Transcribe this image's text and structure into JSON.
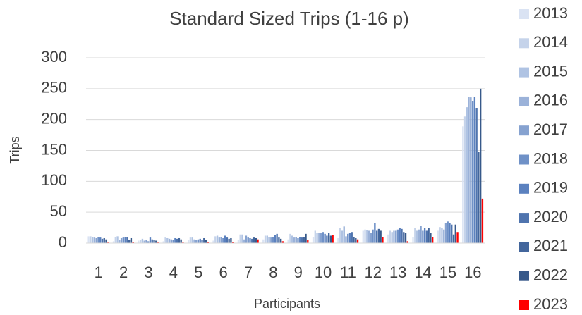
{
  "chart_data": {
    "type": "bar",
    "title": "Standard Sized Trips (1-16 p)",
    "x_label": "Participants",
    "y_label": "Trips",
    "categories": [
      "1",
      "2",
      "3",
      "4",
      "5",
      "6",
      "7",
      "8",
      "9",
      "10",
      "11",
      "12",
      "13",
      "14",
      "15",
      "16"
    ],
    "series": [
      {
        "name": "2013",
        "color": "#dae3f3",
        "values": [
          11,
          3,
          4,
          3,
          5,
          4,
          5,
          6,
          6,
          10,
          8,
          20,
          14,
          10,
          20,
          189
        ]
      },
      {
        "name": "2014",
        "color": "#c5d3ea",
        "values": [
          11,
          10,
          5,
          9,
          9,
          11,
          14,
          12,
          15,
          20,
          25,
          22,
          20,
          24,
          26,
          205
        ]
      },
      {
        "name": "2015",
        "color": "#afc3e3",
        "values": [
          10,
          11,
          7,
          8,
          9,
          12,
          14,
          12,
          12,
          17,
          20,
          21,
          18,
          20,
          24,
          220
        ]
      },
      {
        "name": "2016",
        "color": "#9bb2d9",
        "values": [
          9,
          5,
          4,
          7,
          6,
          9,
          6,
          10,
          9,
          16,
          27,
          20,
          20,
          22,
          22,
          237
        ]
      },
      {
        "name": "2017",
        "color": "#86a2d0",
        "values": [
          8,
          8,
          5,
          6,
          5,
          10,
          12,
          9,
          10,
          17,
          11,
          17,
          20,
          28,
          32,
          236
        ]
      },
      {
        "name": "2018",
        "color": "#6f91c7",
        "values": [
          10,
          9,
          3,
          5,
          6,
          8,
          9,
          10,
          8,
          18,
          15,
          22,
          22,
          20,
          35,
          230
        ]
      },
      {
        "name": "2019",
        "color": "#5b81bf",
        "values": [
          9,
          10,
          9,
          8,
          7,
          12,
          8,
          13,
          10,
          15,
          16,
          32,
          24,
          24,
          33,
          237
        ]
      },
      {
        "name": "2020",
        "color": "#4f74ae",
        "values": [
          7,
          10,
          6,
          7,
          5,
          9,
          7,
          15,
          9,
          12,
          18,
          20,
          23,
          20,
          30,
          219
        ]
      },
      {
        "name": "2021",
        "color": "#43669c",
        "values": [
          8,
          5,
          5,
          8,
          8,
          7,
          9,
          9,
          10,
          16,
          10,
          23,
          18,
          25,
          14,
          148
        ]
      },
      {
        "name": "2022",
        "color": "#37598a",
        "values": [
          6,
          8,
          4,
          6,
          5,
          8,
          8,
          7,
          15,
          12,
          8,
          20,
          16,
          16,
          30,
          250
        ]
      },
      {
        "name": "2023",
        "color": "#ff0000",
        "values": [
          1,
          2,
          1,
          1,
          2,
          2,
          6,
          3,
          5,
          13,
          6,
          10,
          3,
          10,
          18,
          72
        ]
      }
    ],
    "ylim": [
      0,
      300
    ],
    "yticks": [
      0,
      50,
      100,
      150,
      200,
      250,
      300
    ],
    "grid": true,
    "legend": "right"
  }
}
